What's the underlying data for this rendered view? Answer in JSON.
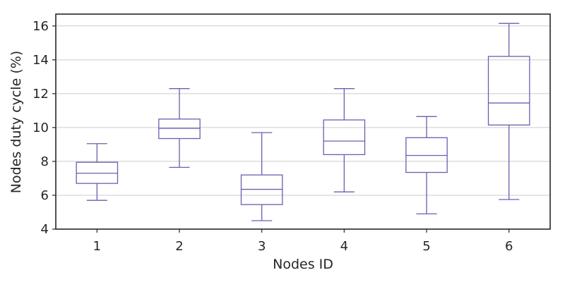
{
  "chart_data": {
    "type": "boxplot",
    "title": "",
    "xlabel": "Nodes ID",
    "ylabel": "Nodes duty cycle (%)",
    "ylim": [
      4,
      16.7
    ],
    "yticks": [
      4,
      6,
      8,
      10,
      12,
      14,
      16
    ],
    "grid": "horizontal",
    "colors": {
      "box": "#6a5fb0",
      "grid": "#cccccc",
      "frame": "#262626"
    },
    "categories": [
      "1",
      "2",
      "3",
      "4",
      "5",
      "6"
    ],
    "boxes": [
      {
        "whisker_low": 5.7,
        "q1": 6.7,
        "median": 7.3,
        "q3": 7.95,
        "whisker_high": 9.05
      },
      {
        "whisker_low": 7.65,
        "q1": 9.35,
        "median": 9.95,
        "q3": 10.5,
        "whisker_high": 12.3
      },
      {
        "whisker_low": 4.5,
        "q1": 5.45,
        "median": 6.35,
        "q3": 7.2,
        "whisker_high": 9.7
      },
      {
        "whisker_low": 6.2,
        "q1": 8.4,
        "median": 9.2,
        "q3": 10.45,
        "whisker_high": 12.3
      },
      {
        "whisker_low": 4.9,
        "q1": 7.35,
        "median": 8.35,
        "q3": 9.4,
        "whisker_high": 10.65
      },
      {
        "whisker_low": 5.75,
        "q1": 10.15,
        "median": 11.45,
        "q3": 14.2,
        "whisker_high": 16.15
      }
    ]
  }
}
